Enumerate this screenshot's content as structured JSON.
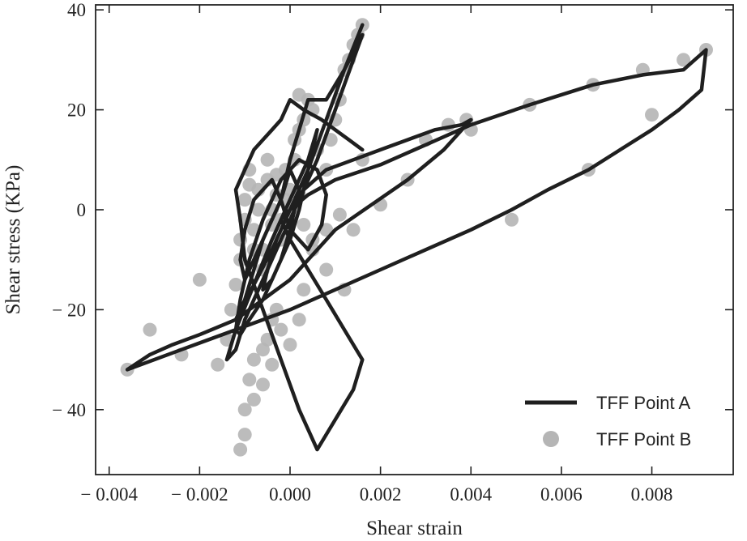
{
  "chart_data": {
    "type": "line",
    "xlabel": "Shear strain",
    "ylabel": "Shear stress (KPa)",
    "xlim": [
      -0.0043,
      0.0098
    ],
    "ylim": [
      -53,
      41
    ],
    "x_ticks": [
      -0.004,
      -0.002,
      0.0,
      0.002,
      0.004,
      0.006,
      0.008
    ],
    "x_tick_labels": [
      "− 0.004",
      "− 0.002",
      "0.000",
      "0.002",
      "0.004",
      "0.006",
      "0.008"
    ],
    "y_ticks": [
      -40,
      -20,
      0,
      20,
      40
    ],
    "y_tick_labels": [
      "− 40",
      "− 20",
      "0",
      "20",
      "40"
    ],
    "legend_position": "lower-right",
    "series": [
      {
        "name": "TFF Point A",
        "style": "line",
        "color": "#1f1f1f",
        "x": [
          0.0,
          0.0004,
          0.0008,
          0.0012,
          0.0016,
          0.0012,
          0.0008,
          0.0004,
          0.0,
          -0.0004,
          -0.0008,
          -0.0012,
          -0.001,
          -0.0008,
          -0.0006,
          -0.0002,
          0.0,
          0.0002,
          0.0004,
          0.0008,
          0.0012,
          0.0016,
          0.0014,
          0.001,
          0.0006,
          0.0002,
          -0.0002,
          -0.0006,
          -0.001,
          -0.0012,
          -0.0014,
          -0.0012,
          -0.0008,
          -0.0004,
          0.0,
          0.0004,
          0.0006,
          0.0004,
          0.0002,
          0.0,
          -0.0003,
          -0.0006,
          -0.0009,
          -0.0011,
          -0.0012,
          -0.0011,
          -0.0009,
          -0.0006,
          -0.0002,
          0.0002,
          0.0006,
          0.0008,
          0.0007,
          0.0004,
          0.0,
          -0.0002,
          -0.0004,
          -0.0008,
          -0.001,
          -0.0011,
          -0.001,
          -0.0008,
          -0.0005,
          -0.0002,
          0.0,
          0.0002,
          0.0,
          -0.0002,
          -0.0004,
          -0.0006,
          -0.0005,
          -0.0003,
          0.0,
          0.0003,
          0.0008,
          0.0014,
          0.002,
          0.0026,
          0.0032,
          0.0038,
          0.004,
          0.0034,
          0.0026,
          0.0018,
          0.001,
          0.0004,
          0.0,
          -0.0006,
          -0.0012,
          -0.002,
          -0.0026,
          -0.0031,
          -0.0036,
          -0.0024,
          -0.0012,
          0.0,
          0.001,
          0.002,
          0.003,
          0.004,
          0.0049,
          0.0057,
          0.0066,
          0.0073,
          0.008,
          0.0086,
          0.0091,
          0.0092,
          0.0087,
          0.0078,
          0.0067,
          0.0053,
          0.004,
          0.003,
          0.002,
          0.001,
          0.0004,
          0.0,
          -0.0002,
          0.0,
          0.0004,
          0.0008,
          0.0012,
          0.0016,
          0.0014,
          0.001,
          0.0006,
          0.0002,
          -0.0002,
          -0.0006,
          -0.001,
          -0.0011,
          -0.0012,
          -0.001,
          -0.0008,
          -0.0006,
          -0.0004,
          -0.0002,
          0.0,
          0.0003,
          0.0007,
          0.001,
          0.0013,
          0.0016
        ],
        "y": [
          0,
          8,
          18,
          28,
          37,
          28,
          18,
          8,
          0,
          -8,
          -15,
          -22,
          -18,
          -12,
          -6,
          2,
          10,
          16,
          22,
          22,
          28,
          35,
          30,
          20,
          10,
          2,
          -6,
          -14,
          -22,
          -28,
          -30,
          -24,
          -15,
          -6,
          2,
          10,
          16,
          8,
          0,
          -6,
          -12,
          -18,
          -22,
          -25,
          -24,
          -18,
          -10,
          -2,
          6,
          10,
          8,
          3,
          -3,
          -8,
          -4,
          2,
          6,
          2,
          -4,
          -10,
          -14,
          -10,
          -4,
          2,
          8,
          4,
          -4,
          -10,
          -14,
          -16,
          -12,
          -6,
          0,
          4,
          8,
          10,
          12,
          14,
          16,
          17,
          18,
          12,
          6,
          1,
          -4,
          -10,
          -14,
          -18,
          -22,
          -25,
          -27,
          -29,
          -32,
          -28,
          -24,
          -20,
          -16,
          -12,
          -8,
          -4,
          0,
          4,
          8,
          12,
          16,
          20,
          24,
          32,
          28,
          27,
          25,
          21,
          17,
          13,
          9,
          6,
          3,
          0,
          -2,
          -6,
          -12,
          -18,
          -24,
          -30,
          -36,
          -42,
          -48,
          -40,
          -30,
          -20,
          -10,
          -2,
          4,
          8,
          12,
          14,
          16,
          18,
          22,
          20,
          18,
          16,
          14,
          12
        ]
      },
      {
        "name": "TFF Point B",
        "style": "scatter",
        "color": "#b5b5b5",
        "x": [
          -0.0036,
          -0.0031,
          -0.0024,
          -0.002,
          -0.0016,
          -0.0014,
          -0.0013,
          -0.0012,
          -0.0011,
          -0.0011,
          -0.001,
          -0.001,
          -0.0009,
          -0.0009,
          -0.0008,
          -0.0008,
          -0.0007,
          -0.0007,
          -0.0006,
          -0.0006,
          -0.0005,
          -0.0005,
          -0.0004,
          -0.0004,
          -0.0003,
          -0.0003,
          -0.0002,
          -0.0002,
          -0.0001,
          -0.0001,
          0.0,
          0.0,
          0.0001,
          0.0001,
          0.0002,
          0.0002,
          0.0003,
          0.0004,
          0.0005,
          0.0006,
          0.0008,
          0.0009,
          0.001,
          0.0011,
          0.0012,
          0.0013,
          0.0014,
          0.0015,
          0.0016,
          0.0002,
          0.0003,
          0.0005,
          0.0008,
          0.0011,
          0.0014,
          0.0016,
          0.002,
          0.0026,
          0.003,
          0.0035,
          0.0039,
          0.004,
          0.0049,
          0.0053,
          0.0066,
          0.0067,
          0.0078,
          0.008,
          0.0087,
          0.0092,
          0.0012,
          0.0008,
          0.0005,
          0.0003,
          0.0002,
          0.0,
          -0.0002,
          -0.0004,
          -0.0006,
          -0.0008,
          -0.001,
          -0.0011,
          -0.0003,
          -0.0004,
          -0.0005,
          -0.0006,
          -0.0008,
          -0.0009,
          -0.001
        ],
        "y": [
          -32,
          -24,
          -29,
          -14,
          -31,
          -26,
          -20,
          -15,
          -10,
          -6,
          -2,
          2,
          5,
          8,
          -8,
          -4,
          0,
          4,
          -12,
          -8,
          6,
          10,
          -3,
          0,
          3,
          7,
          -6,
          -2,
          2,
          8,
          0,
          4,
          10,
          14,
          16,
          23,
          18,
          22,
          20,
          12,
          8,
          14,
          18,
          22,
          28,
          30,
          33,
          35,
          37,
          3,
          -3,
          -6,
          -4,
          -1,
          -4,
          10,
          1,
          6,
          14,
          17,
          18,
          16,
          -2,
          21,
          8,
          25,
          28,
          19,
          30,
          32,
          -16,
          -12,
          -8,
          -16,
          -22,
          -27,
          -24,
          -31,
          -35,
          -38,
          -45,
          -48,
          -20,
          -22,
          -26,
          -28,
          -30,
          -34,
          -40
        ]
      }
    ]
  }
}
